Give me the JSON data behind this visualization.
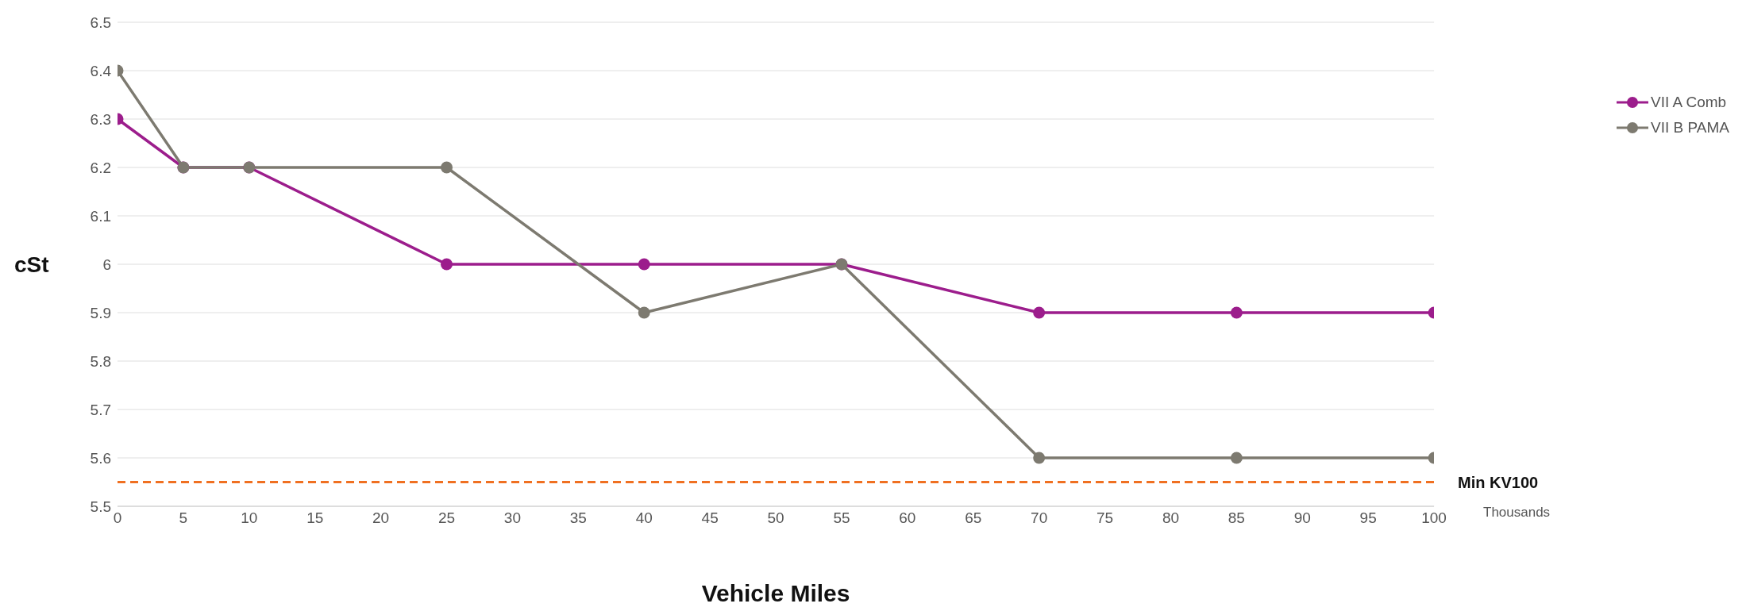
{
  "chart_data": {
    "type": "line",
    "xlabel": "Vehicle Miles",
    "ylabel": "cSt",
    "x": [
      0,
      5,
      10,
      25,
      40,
      55,
      70,
      85,
      100
    ],
    "series": [
      {
        "name": "VII A Comb",
        "color": "#9c1d8c",
        "values": [
          6.3,
          6.2,
          6.2,
          6.0,
          6.0,
          6.0,
          5.9,
          5.9,
          5.9
        ]
      },
      {
        "name": "VII B PAMA",
        "color": "#7d7a70",
        "values": [
          6.4,
          6.2,
          6.2,
          6.2,
          5.9,
          6.0,
          5.6,
          5.6,
          5.6
        ]
      }
    ],
    "xlim": [
      0,
      100
    ],
    "xticks": [
      0,
      5,
      10,
      15,
      20,
      25,
      30,
      35,
      40,
      45,
      50,
      55,
      60,
      65,
      70,
      75,
      80,
      85,
      90,
      95,
      100
    ],
    "ylim": [
      5.5,
      6.5
    ],
    "yticks": [
      5.5,
      5.6,
      5.7,
      5.8,
      5.9,
      6,
      6.1,
      6.2,
      6.3,
      6.4,
      6.5
    ],
    "ref_lines": [
      {
        "axis": "y",
        "value": 5.55,
        "label": "Min KV100",
        "color": "#f07021",
        "line_style": "dashed"
      }
    ],
    "annotations": [
      "Thousands"
    ],
    "grid": "y",
    "legend": "right",
    "marker": "circle",
    "line_style": "solid"
  }
}
